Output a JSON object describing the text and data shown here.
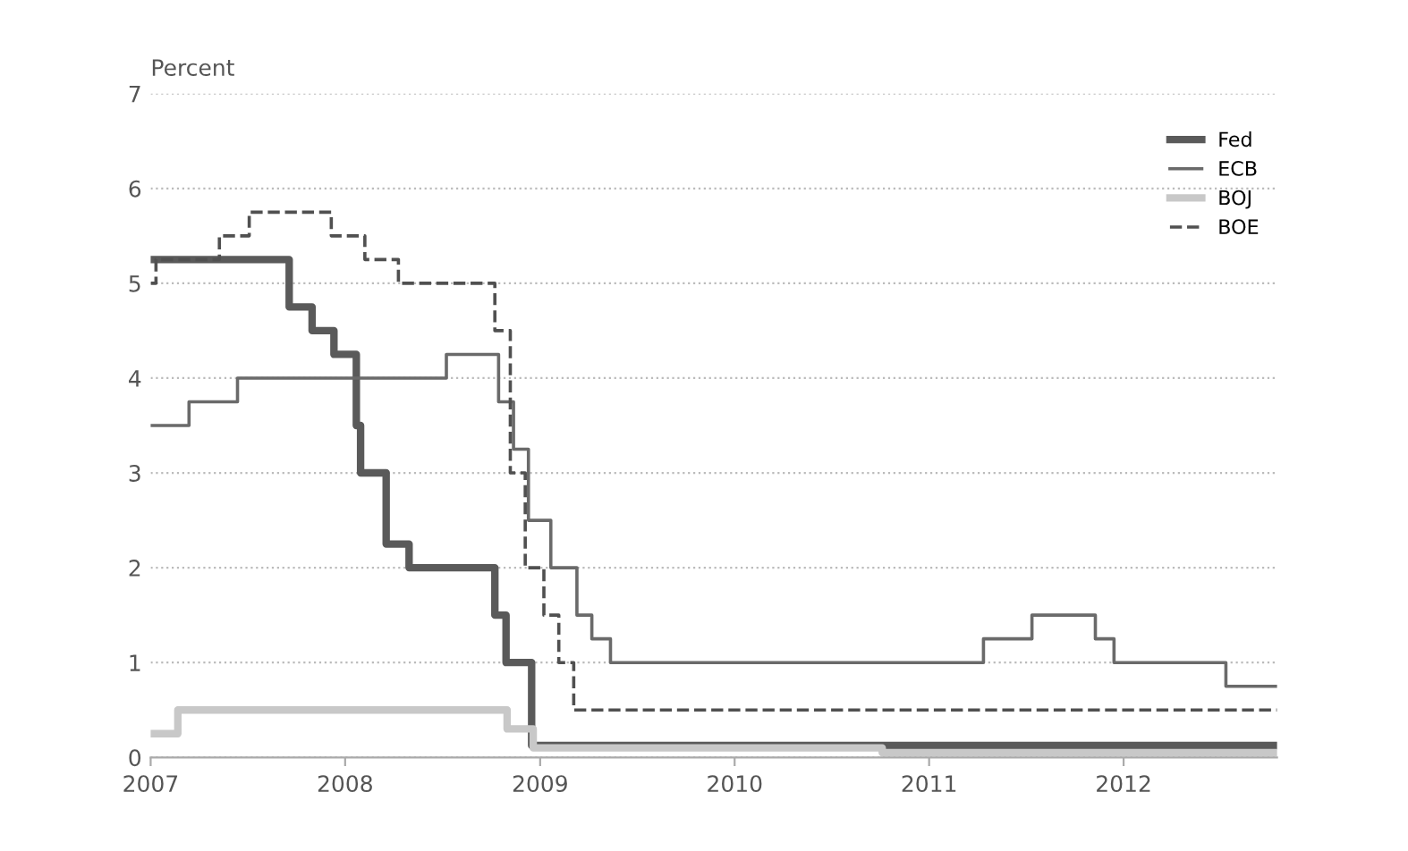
{
  "chart_data": {
    "type": "step",
    "ylabel": "Percent",
    "xlim": [
      "2007-01-01",
      "2012-10-15"
    ],
    "ylim": [
      0,
      7
    ],
    "yticks": [
      0,
      1,
      2,
      3,
      4,
      5,
      6,
      7
    ],
    "xticks": [
      "2007",
      "2008",
      "2009",
      "2010",
      "2011",
      "2012"
    ],
    "grid": "y",
    "legend": "top right",
    "series": [
      {
        "name": "Fed",
        "color": "#5a5a5a",
        "line_style": "solid",
        "x": [
          "2007-01-01",
          "2007-09-18",
          "2007-10-31",
          "2007-12-11",
          "2008-01-22",
          "2008-01-30",
          "2008-03-18",
          "2008-04-30",
          "2008-10-08",
          "2008-10-29",
          "2008-12-16",
          "2012-10-15"
        ],
        "values": [
          5.25,
          4.75,
          4.5,
          4.25,
          3.5,
          3.0,
          2.25,
          2.0,
          1.5,
          1.0,
          0.125,
          0.125
        ]
      },
      {
        "name": "ECB",
        "color": "#6a6a6a",
        "line_style": "solid",
        "x": [
          "2007-01-01",
          "2007-03-14",
          "2007-06-13",
          "2008-07-09",
          "2008-10-15",
          "2008-11-12",
          "2008-12-10",
          "2009-01-21",
          "2009-03-11",
          "2009-04-08",
          "2009-05-13",
          "2011-04-13",
          "2011-07-13",
          "2011-11-09",
          "2011-12-14",
          "2012-07-11",
          "2012-10-15"
        ],
        "values": [
          3.5,
          3.75,
          4.0,
          4.25,
          3.75,
          3.25,
          2.5,
          2.0,
          1.5,
          1.25,
          1.0,
          1.25,
          1.5,
          1.25,
          1.0,
          0.75,
          0.75
        ]
      },
      {
        "name": "BOJ",
        "color": "#c8c8c8",
        "line_style": "solid",
        "x": [
          "2007-01-01",
          "2007-02-21",
          "2008-10-31",
          "2008-12-19",
          "2010-10-05",
          "2012-10-15"
        ],
        "values": [
          0.25,
          0.5,
          0.3,
          0.1,
          0.05,
          0.05
        ]
      },
      {
        "name": "BOE",
        "color": "#505050",
        "line_style": "dashed",
        "x": [
          "2007-01-01",
          "2007-01-11",
          "2007-05-10",
          "2007-07-05",
          "2007-12-06",
          "2008-02-07",
          "2008-04-10",
          "2008-10-08",
          "2008-11-06",
          "2008-12-04",
          "2009-01-08",
          "2009-02-05",
          "2009-03-05",
          "2012-10-15"
        ],
        "values": [
          5.0,
          5.25,
          5.5,
          5.75,
          5.5,
          5.25,
          5.0,
          4.5,
          3.0,
          2.0,
          1.5,
          1.0,
          0.5,
          0.5
        ]
      }
    ]
  }
}
